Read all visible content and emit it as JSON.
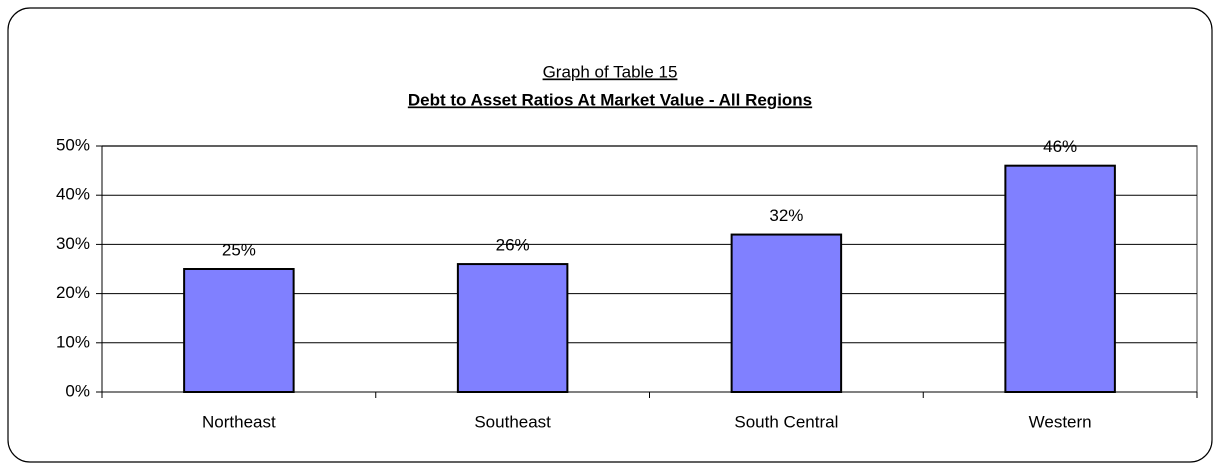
{
  "chart_data": {
    "type": "bar",
    "subtitle": "Graph of Table 15",
    "title": "Debt to Asset Ratios At Market Value - All Regions",
    "categories": [
      "Northeast",
      "Southeast",
      "South Central",
      "Western"
    ],
    "values": [
      25,
      26,
      32,
      46
    ],
    "value_labels": [
      "25%",
      "26%",
      "32%",
      "46%"
    ],
    "color": "#8080ff",
    "ylim": [
      0,
      50
    ],
    "yticks": [
      {
        "value": 0,
        "label": "0%"
      },
      {
        "value": 10,
        "label": "10%"
      },
      {
        "value": 20,
        "label": "20%"
      },
      {
        "value": 30,
        "label": "30%"
      },
      {
        "value": 40,
        "label": "40%"
      },
      {
        "value": 50,
        "label": "50%"
      }
    ],
    "grid": true
  }
}
